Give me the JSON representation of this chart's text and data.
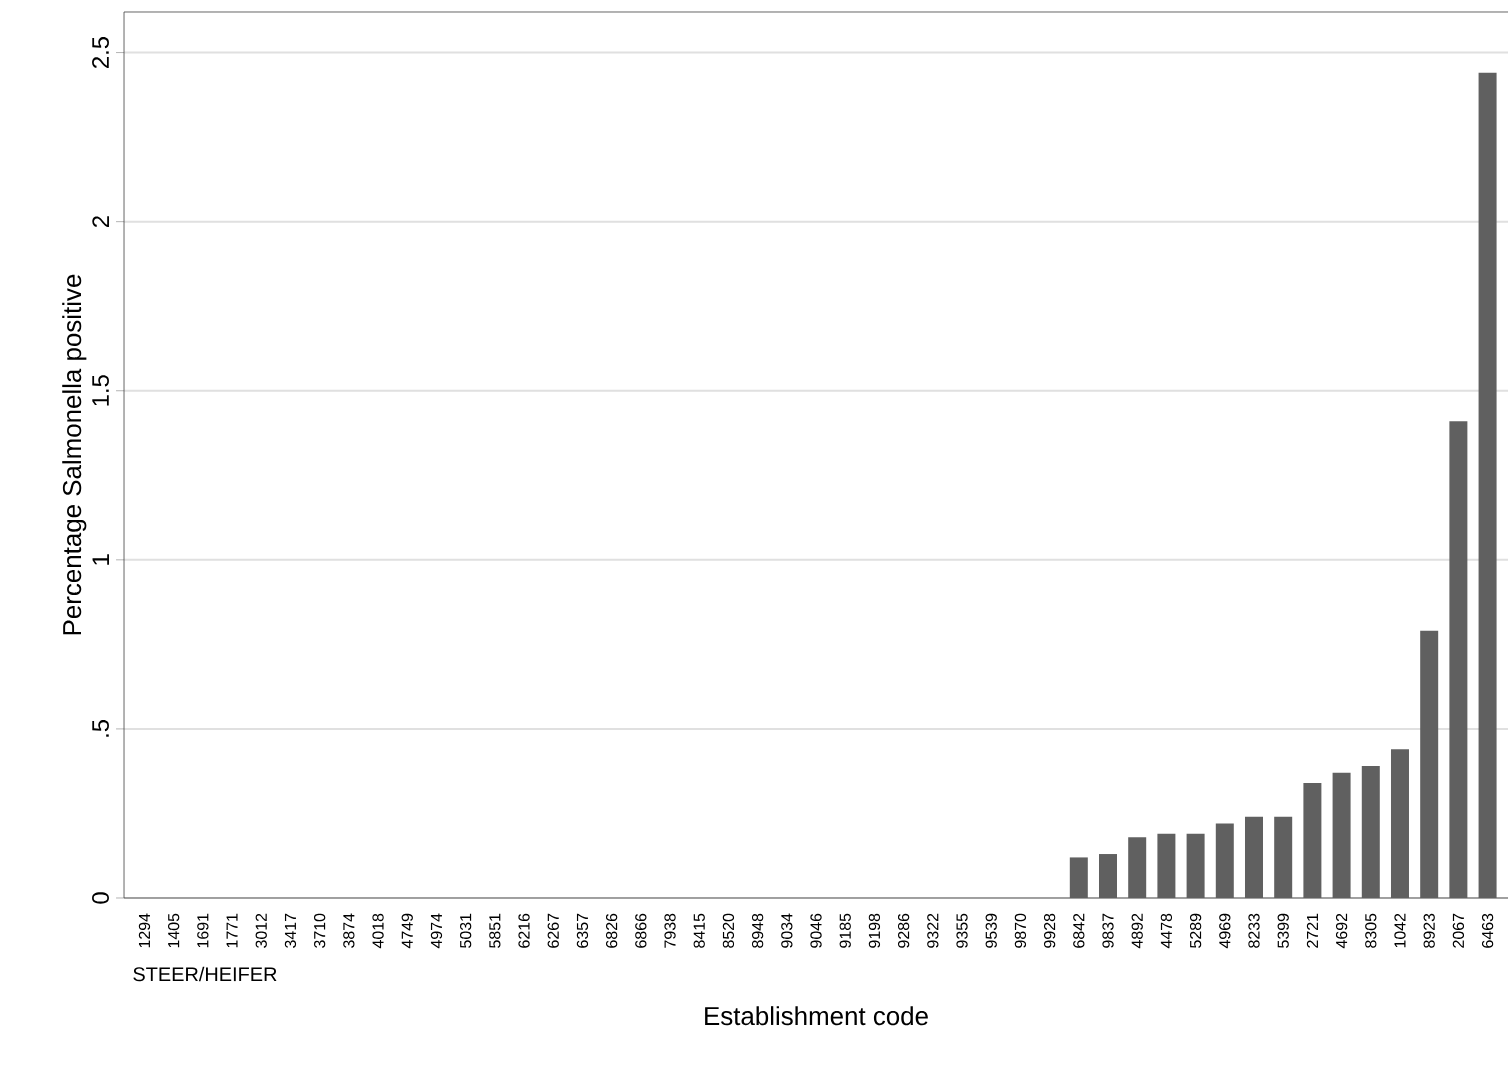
{
  "chart_data": {
    "type": "bar",
    "xlabel": "Establishment code",
    "ylabel": "Percentage Salmonella positive",
    "categories": [
      "1294",
      "1405",
      "1691",
      "1771",
      "3012",
      "3417",
      "3710",
      "3874",
      "4018",
      "4749",
      "4974",
      "5031",
      "5851",
      "6216",
      "6267",
      "6357",
      "6826",
      "6866",
      "7938",
      "8415",
      "8520",
      "8948",
      "9034",
      "9046",
      "9185",
      "9198",
      "9286",
      "9322",
      "9355",
      "9539",
      "9870",
      "9928",
      "6842",
      "9837",
      "4892",
      "4478",
      "5289",
      "4969",
      "8233",
      "5399",
      "2721",
      "4692",
      "8305",
      "1042",
      "8923",
      "2067",
      "6463"
    ],
    "values": [
      0,
      0,
      0,
      0,
      0,
      0,
      0,
      0,
      0,
      0,
      0,
      0,
      0,
      0,
      0,
      0,
      0,
      0,
      0,
      0,
      0,
      0,
      0,
      0,
      0,
      0,
      0,
      0,
      0,
      0,
      0,
      0,
      0.12,
      0.13,
      0.18,
      0.19,
      0.19,
      0.22,
      0.24,
      0.24,
      0.34,
      0.37,
      0.39,
      0.44,
      0.79,
      1.41,
      2.44
    ],
    "color": "#606060",
    "ylim": [
      0,
      2.62
    ],
    "yticks": [
      0,
      {
        "value": 0.5,
        "label": ".5"
      },
      1,
      1.5,
      2,
      2.5
    ],
    "grid": "y",
    "annotations": [
      "STEER/HEIFER"
    ]
  }
}
